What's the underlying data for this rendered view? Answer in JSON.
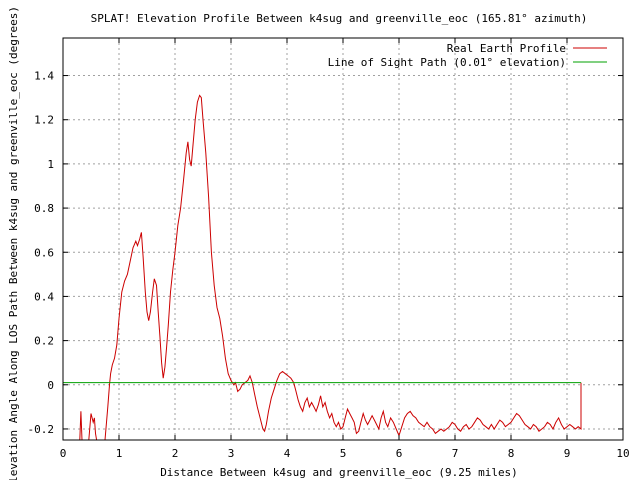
{
  "chart_data": {
    "type": "line",
    "title": "SPLAT! Elevation Profile Between k4sug and greenville_eoc (165.81° azimuth)",
    "xlabel": "Distance Between k4sug and greenville_eoc (9.25 miles)",
    "ylabel": "Elevation Angle Along LOS Path Between k4sug and greenville_eoc (degrees)",
    "xlim": [
      0,
      10
    ],
    "ylim": [
      -0.25,
      1.57
    ],
    "x_ticks": [
      "0",
      "1",
      "2",
      "3",
      "4",
      "5",
      "6",
      "7",
      "8",
      "9",
      "10"
    ],
    "y_ticks": [
      "-0.2",
      "0",
      "0.2",
      "0.4",
      "0.6",
      "0.8",
      "1",
      "1.2",
      "1.4"
    ],
    "grid": true,
    "legend_position": "top-right",
    "series": [
      {
        "name": "Real Earth Profile",
        "color": "#cc0000",
        "points": [
          [
            0.3,
            -0.25
          ],
          [
            0.32,
            -0.12
          ],
          [
            0.34,
            -0.25
          ],
          [
            0.46,
            -0.25
          ],
          [
            0.5,
            -0.13
          ],
          [
            0.54,
            -0.17
          ],
          [
            0.56,
            -0.15
          ],
          [
            0.58,
            -0.22
          ],
          [
            0.6,
            -0.25
          ],
          [
            0.75,
            -0.25
          ],
          [
            0.8,
            -0.1
          ],
          [
            0.83,
            0.0
          ],
          [
            0.85,
            0.05
          ],
          [
            0.88,
            0.09
          ],
          [
            0.92,
            0.12
          ],
          [
            0.96,
            0.18
          ],
          [
            1.0,
            0.3
          ],
          [
            1.05,
            0.42
          ],
          [
            1.1,
            0.47
          ],
          [
            1.15,
            0.5
          ],
          [
            1.2,
            0.56
          ],
          [
            1.25,
            0.62
          ],
          [
            1.3,
            0.65
          ],
          [
            1.33,
            0.63
          ],
          [
            1.37,
            0.66
          ],
          [
            1.4,
            0.69
          ],
          [
            1.43,
            0.58
          ],
          [
            1.47,
            0.42
          ],
          [
            1.5,
            0.33
          ],
          [
            1.53,
            0.29
          ],
          [
            1.56,
            0.33
          ],
          [
            1.6,
            0.42
          ],
          [
            1.63,
            0.48
          ],
          [
            1.67,
            0.45
          ],
          [
            1.7,
            0.33
          ],
          [
            1.73,
            0.22
          ],
          [
            1.76,
            0.1
          ],
          [
            1.79,
            0.03
          ],
          [
            1.82,
            0.08
          ],
          [
            1.85,
            0.17
          ],
          [
            1.88,
            0.27
          ],
          [
            1.92,
            0.42
          ],
          [
            1.96,
            0.52
          ],
          [
            2.0,
            0.6
          ],
          [
            2.05,
            0.72
          ],
          [
            2.1,
            0.8
          ],
          [
            2.15,
            0.92
          ],
          [
            2.2,
            1.05
          ],
          [
            2.23,
            1.1
          ],
          [
            2.26,
            1.02
          ],
          [
            2.29,
            0.99
          ],
          [
            2.32,
            1.08
          ],
          [
            2.36,
            1.2
          ],
          [
            2.4,
            1.28
          ],
          [
            2.44,
            1.31
          ],
          [
            2.47,
            1.3
          ],
          [
            2.5,
            1.2
          ],
          [
            2.55,
            1.05
          ],
          [
            2.6,
            0.85
          ],
          [
            2.65,
            0.6
          ],
          [
            2.7,
            0.45
          ],
          [
            2.75,
            0.35
          ],
          [
            2.8,
            0.3
          ],
          [
            2.85,
            0.22
          ],
          [
            2.9,
            0.12
          ],
          [
            2.95,
            0.05
          ],
          [
            3.0,
            0.02
          ],
          [
            3.05,
            0.0
          ],
          [
            3.08,
            0.01
          ],
          [
            3.12,
            -0.03
          ],
          [
            3.16,
            -0.02
          ],
          [
            3.2,
            0.0
          ],
          [
            3.25,
            0.01
          ],
          [
            3.3,
            0.02
          ],
          [
            3.34,
            0.04
          ],
          [
            3.38,
            0.01
          ],
          [
            3.42,
            -0.04
          ],
          [
            3.47,
            -0.1
          ],
          [
            3.52,
            -0.15
          ],
          [
            3.57,
            -0.2
          ],
          [
            3.6,
            -0.21
          ],
          [
            3.63,
            -0.18
          ],
          [
            3.67,
            -0.12
          ],
          [
            3.72,
            -0.06
          ],
          [
            3.77,
            -0.02
          ],
          [
            3.82,
            0.02
          ],
          [
            3.87,
            0.05
          ],
          [
            3.92,
            0.06
          ],
          [
            3.97,
            0.05
          ],
          [
            4.02,
            0.04
          ],
          [
            4.07,
            0.03
          ],
          [
            4.12,
            0.01
          ],
          [
            4.16,
            -0.03
          ],
          [
            4.2,
            -0.07
          ],
          [
            4.24,
            -0.1
          ],
          [
            4.28,
            -0.12
          ],
          [
            4.32,
            -0.08
          ],
          [
            4.36,
            -0.06
          ],
          [
            4.4,
            -0.1
          ],
          [
            4.44,
            -0.08
          ],
          [
            4.48,
            -0.1
          ],
          [
            4.52,
            -0.12
          ],
          [
            4.56,
            -0.09
          ],
          [
            4.6,
            -0.05
          ],
          [
            4.64,
            -0.1
          ],
          [
            4.68,
            -0.08
          ],
          [
            4.72,
            -0.12
          ],
          [
            4.76,
            -0.15
          ],
          [
            4.8,
            -0.13
          ],
          [
            4.84,
            -0.17
          ],
          [
            4.88,
            -0.19
          ],
          [
            4.92,
            -0.17
          ],
          [
            4.96,
            -0.2
          ],
          [
            5.0,
            -0.19
          ],
          [
            5.04,
            -0.15
          ],
          [
            5.08,
            -0.11
          ],
          [
            5.12,
            -0.13
          ],
          [
            5.16,
            -0.15
          ],
          [
            5.2,
            -0.17
          ],
          [
            5.24,
            -0.22
          ],
          [
            5.28,
            -0.21
          ],
          [
            5.32,
            -0.17
          ],
          [
            5.36,
            -0.13
          ],
          [
            5.4,
            -0.16
          ],
          [
            5.44,
            -0.18
          ],
          [
            5.48,
            -0.16
          ],
          [
            5.52,
            -0.14
          ],
          [
            5.56,
            -0.16
          ],
          [
            5.6,
            -0.18
          ],
          [
            5.64,
            -0.2
          ],
          [
            5.68,
            -0.15
          ],
          [
            5.72,
            -0.12
          ],
          [
            5.76,
            -0.17
          ],
          [
            5.8,
            -0.19
          ],
          [
            5.85,
            -0.15
          ],
          [
            5.9,
            -0.17
          ],
          [
            5.95,
            -0.2
          ],
          [
            6.0,
            -0.23
          ],
          [
            6.05,
            -0.19
          ],
          [
            6.1,
            -0.15
          ],
          [
            6.15,
            -0.13
          ],
          [
            6.2,
            -0.12
          ],
          [
            6.25,
            -0.14
          ],
          [
            6.3,
            -0.15
          ],
          [
            6.35,
            -0.17
          ],
          [
            6.4,
            -0.18
          ],
          [
            6.45,
            -0.19
          ],
          [
            6.5,
            -0.17
          ],
          [
            6.55,
            -0.19
          ],
          [
            6.6,
            -0.2
          ],
          [
            6.65,
            -0.22
          ],
          [
            6.7,
            -0.21
          ],
          [
            6.75,
            -0.2
          ],
          [
            6.8,
            -0.21
          ],
          [
            6.85,
            -0.2
          ],
          [
            6.9,
            -0.19
          ],
          [
            6.95,
            -0.17
          ],
          [
            7.0,
            -0.18
          ],
          [
            7.05,
            -0.2
          ],
          [
            7.1,
            -0.21
          ],
          [
            7.15,
            -0.19
          ],
          [
            7.2,
            -0.18
          ],
          [
            7.25,
            -0.2
          ],
          [
            7.3,
            -0.19
          ],
          [
            7.35,
            -0.17
          ],
          [
            7.4,
            -0.15
          ],
          [
            7.45,
            -0.16
          ],
          [
            7.5,
            -0.18
          ],
          [
            7.55,
            -0.19
          ],
          [
            7.6,
            -0.2
          ],
          [
            7.65,
            -0.18
          ],
          [
            7.7,
            -0.2
          ],
          [
            7.75,
            -0.18
          ],
          [
            7.8,
            -0.16
          ],
          [
            7.85,
            -0.17
          ],
          [
            7.9,
            -0.19
          ],
          [
            7.95,
            -0.18
          ],
          [
            8.0,
            -0.17
          ],
          [
            8.05,
            -0.15
          ],
          [
            8.1,
            -0.13
          ],
          [
            8.15,
            -0.14
          ],
          [
            8.2,
            -0.16
          ],
          [
            8.25,
            -0.18
          ],
          [
            8.3,
            -0.19
          ],
          [
            8.35,
            -0.2
          ],
          [
            8.4,
            -0.18
          ],
          [
            8.45,
            -0.19
          ],
          [
            8.5,
            -0.21
          ],
          [
            8.55,
            -0.2
          ],
          [
            8.6,
            -0.19
          ],
          [
            8.65,
            -0.17
          ],
          [
            8.7,
            -0.18
          ],
          [
            8.75,
            -0.2
          ],
          [
            8.8,
            -0.17
          ],
          [
            8.85,
            -0.15
          ],
          [
            8.9,
            -0.18
          ],
          [
            8.95,
            -0.2
          ],
          [
            9.0,
            -0.19
          ],
          [
            9.05,
            -0.18
          ],
          [
            9.1,
            -0.19
          ],
          [
            9.15,
            -0.2
          ],
          [
            9.2,
            -0.19
          ],
          [
            9.25,
            -0.2
          ],
          [
            9.25,
            0.01
          ]
        ]
      },
      {
        "name": "Line of Sight Path (0.01° elevation)",
        "color": "#00a000",
        "points": [
          [
            0,
            0.01
          ],
          [
            9.25,
            0.01
          ]
        ]
      }
    ]
  }
}
